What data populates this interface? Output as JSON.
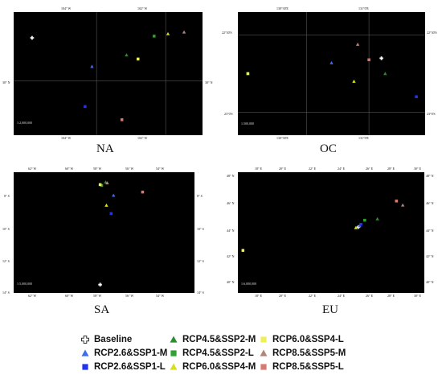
{
  "panels": {
    "NA": {
      "label": "NA",
      "scale": "1:2,000,000",
      "top_ticks": [
        "104° W",
        "102° W"
      ],
      "bottom_ticks": [
        "104° W",
        "102° W"
      ],
      "left_tick": "30° N",
      "right_tick": "30° N",
      "points": [
        {
          "cls": "baseline",
          "lon": -104.9,
          "lat": 30.75
        },
        {
          "cls": "rcp26_m",
          "lon": -103.6,
          "lat": 30.25
        },
        {
          "cls": "rcp26_l",
          "lon": -103.75,
          "lat": 29.55
        },
        {
          "cls": "rcp45_m",
          "lon": -102.85,
          "lat": 30.45
        },
        {
          "cls": "rcp45_l",
          "lon": -102.25,
          "lat": 30.78
        },
        {
          "cls": "rcp60_m",
          "lon": -101.95,
          "lat": 30.82
        },
        {
          "cls": "rcp60_l",
          "lon": -102.6,
          "lat": 30.38
        },
        {
          "cls": "rcp85_m",
          "lon": -101.6,
          "lat": 30.85
        },
        {
          "cls": "rcp85_l",
          "lon": -102.95,
          "lat": 29.32
        }
      ]
    },
    "OC": {
      "label": "OC",
      "scale": "1:500,000",
      "top_ticks": [
        "130°30'E",
        "131°0'E"
      ],
      "bottom_ticks": [
        "130°30'E",
        "131°0'E"
      ],
      "left_tick": "22°30'S",
      "right_tick": "22°30'S",
      "left_tick2": "23°0'S",
      "right_tick2": "23°0'S",
      "points": [
        {
          "cls": "baseline",
          "lon": 131.1,
          "lat": -22.65
        },
        {
          "cls": "rcp26_m",
          "lon": 130.7,
          "lat": -22.68
        },
        {
          "cls": "rcp26_l",
          "lon": 131.38,
          "lat": -22.9
        },
        {
          "cls": "rcp45_m",
          "lon": 131.13,
          "lat": -22.75
        },
        {
          "cls": "rcp45_l",
          "lon": 130.03,
          "lat": -22.75
        },
        {
          "cls": "rcp60_m",
          "lon": 130.88,
          "lat": -22.8
        },
        {
          "cls": "rcp60_l",
          "lon": 130.03,
          "lat": -22.75
        },
        {
          "cls": "rcp85_m",
          "lon": 130.91,
          "lat": -22.56
        },
        {
          "cls": "rcp85_l",
          "lon": 131.0,
          "lat": -22.66
        }
      ]
    },
    "SA": {
      "label": "SA",
      "scale": "1:5,000,000",
      "top_ticks": [
        "62° W",
        "60° W",
        "58° W",
        "56° W",
        "54° W"
      ],
      "bottom_ticks": [
        "62° W",
        "60° W",
        "58° W",
        "56° W",
        "54° W"
      ],
      "left_ticks": [
        "8° S",
        "10° S",
        "12° S",
        "14° S"
      ],
      "right_ticks": [
        "8° S",
        "10° S",
        "12° S",
        "14° S"
      ],
      "points": [
        {
          "cls": "baseline",
          "lon": -58.0,
          "lat": -13.6
        },
        {
          "cls": "rcp26_m",
          "lon": -57.15,
          "lat": -8.2
        },
        {
          "cls": "rcp26_l",
          "lon": -57.3,
          "lat": -9.3
        },
        {
          "cls": "rcp45_m",
          "lon": -57.65,
          "lat": -7.4
        },
        {
          "cls": "rcp45_l",
          "lon": -57.9,
          "lat": -7.6
        },
        {
          "cls": "rcp60_m",
          "lon": -57.6,
          "lat": -8.8
        },
        {
          "cls": "rcp60_l",
          "lon": -58.0,
          "lat": -7.55
        },
        {
          "cls": "rcp85_m",
          "lon": -57.55,
          "lat": -7.45
        },
        {
          "cls": "rcp85_l",
          "lon": -55.3,
          "lat": -8.0
        }
      ]
    },
    "EU": {
      "label": "EU",
      "scale": "1:6,000,000",
      "top_ticks": [
        "18° E",
        "20° E",
        "22° E",
        "24° E",
        "26° E",
        "28° E",
        "30° E"
      ],
      "bottom_ticks": [
        "18° E",
        "20° E",
        "22° E",
        "24° E",
        "26° E",
        "28° E",
        "30° E"
      ],
      "left_ticks": [
        "48° N",
        "46° N",
        "44° N",
        "42° N",
        "40° N"
      ],
      "right_ticks": [
        "48° N",
        "46° N",
        "44° N",
        "42° N",
        "40° N"
      ],
      "points": [
        {
          "cls": "baseline",
          "lon": 26.0,
          "lat": 44.4
        },
        {
          "cls": "rcp26_m",
          "lon": 26.1,
          "lat": 44.5
        },
        {
          "cls": "rcp26_l",
          "lon": 26.2,
          "lat": 44.6
        },
        {
          "cls": "rcp45_m",
          "lon": 27.5,
          "lat": 45.0
        },
        {
          "cls": "rcp45_l",
          "lon": 26.5,
          "lat": 44.9
        },
        {
          "cls": "rcp60_m",
          "lon": 25.8,
          "lat": 44.35
        },
        {
          "cls": "rcp60_l",
          "lon": 16.9,
          "lat": 42.7
        },
        {
          "cls": "rcp85_m",
          "lon": 29.5,
          "lat": 46.0
        },
        {
          "cls": "rcp85_l",
          "lon": 29.0,
          "lat": 46.3
        }
      ]
    }
  },
  "series_styles": {
    "baseline": {
      "color": "#ffffff",
      "marker": "cross"
    },
    "rcp26_m": {
      "color": "#3b6df0",
      "marker": "triangle"
    },
    "rcp26_l": {
      "color": "#2233ee",
      "marker": "square"
    },
    "rcp45_m": {
      "color": "#2f8b2f",
      "marker": "triangle"
    },
    "rcp45_l": {
      "color": "#2fa032",
      "marker": "square"
    },
    "rcp60_m": {
      "color": "#d7e020",
      "marker": "triangle"
    },
    "rcp60_l": {
      "color": "#eef05a",
      "marker": "square"
    },
    "rcp85_m": {
      "color": "#b0857a",
      "marker": "triangle"
    },
    "rcp85_l": {
      "color": "#d47a70",
      "marker": "square"
    }
  },
  "legend": [
    {
      "key": "baseline",
      "label": "Baseline"
    },
    {
      "key": "rcp45_m",
      "label": "RCP4.5&SSP2-M"
    },
    {
      "key": "rcp60_l",
      "label": "RCP6.0&SSP4-L"
    },
    {
      "key": "rcp26_m",
      "label": "RCP2.6&SSP1-M"
    },
    {
      "key": "rcp45_l",
      "label": "RCP4.5&SSP2-L"
    },
    {
      "key": "rcp85_m",
      "label": "RCP8.5&SSP5-M"
    },
    {
      "key": "rcp26_l",
      "label": "RCP2.6&SSP1-L"
    },
    {
      "key": "rcp60_m",
      "label": "RCP6.0&SSP4-M"
    },
    {
      "key": "rcp85_l",
      "label": "RCP8.5&SSP5-L"
    }
  ]
}
